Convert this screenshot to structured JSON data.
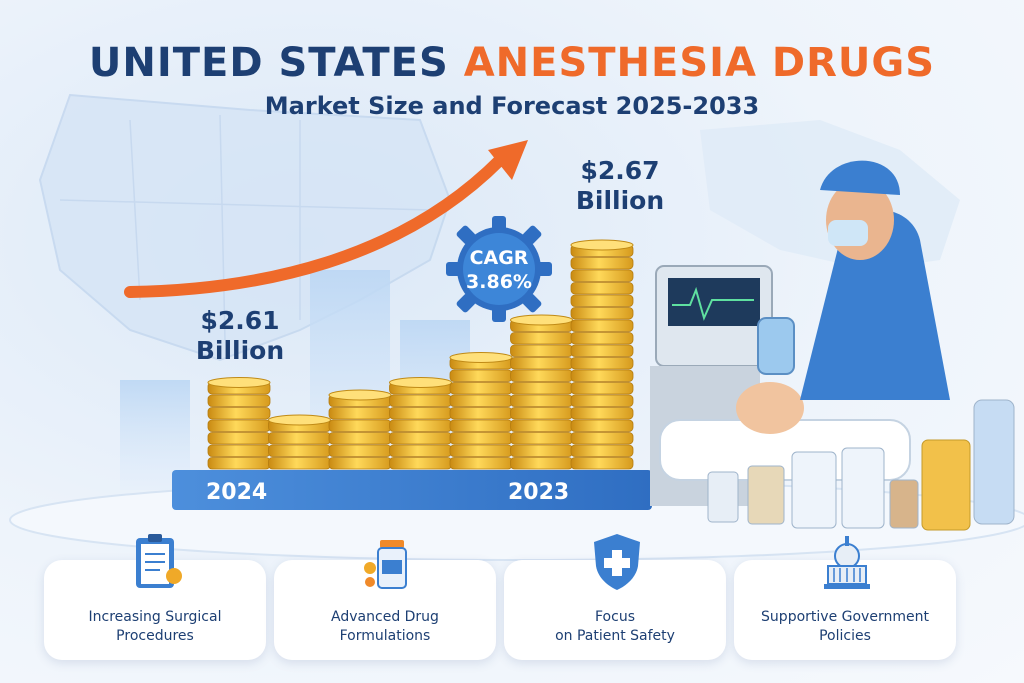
{
  "title": {
    "part1": "UNITED STATES",
    "part2": "ANESTHESIA DRUGS"
  },
  "subtitle": "Market Size and Forecast 2025-2033",
  "cagr": {
    "label": "CAGR",
    "value": "3.86%"
  },
  "labels": {
    "start_value": "$2.61 Billion",
    "end_value": "$2.67 Billion",
    "start_year": "2024",
    "end_year": "2023"
  },
  "chart_data": {
    "type": "bar",
    "title": "United States Anesthesia Drugs Market Size and Forecast 2025-2033",
    "categories": [
      "2024",
      "",
      "",
      "",
      "",
      "",
      "2023"
    ],
    "values": [
      7,
      4,
      6,
      7,
      9,
      12,
      18
    ],
    "value_unit": "coins (stack height, pictorial)",
    "annotated_values": [
      {
        "category": "2024",
        "value": "$2.61 Billion"
      },
      {
        "category": "2023",
        "value": "$2.67 Billion"
      }
    ],
    "cagr": "3.86%",
    "trend": "upward arrow"
  },
  "cards": [
    {
      "label": "Increasing Surgical Procedures",
      "line1": "Increasing Surgical",
      "line2": "Procedures",
      "icon": "clipboard-icon"
    },
    {
      "label": "Advanced Drug Formulations",
      "line1": "Advanced Drug",
      "line2": "Formulations",
      "icon": "pill-bottle-icon"
    },
    {
      "label": "Focus on Patient Safety",
      "line1": "Focus",
      "line2": "on Patient Safety",
      "icon": "shield-icon"
    },
    {
      "label": "Supportive Government Policies",
      "line1": "Supportive Government",
      "line2": "Policies",
      "icon": "capitol-icon"
    }
  ],
  "colors": {
    "navy": "#1d3f73",
    "orange": "#ef6a2a",
    "gold": "#e9b02c",
    "blue": "#3b7fd0"
  }
}
